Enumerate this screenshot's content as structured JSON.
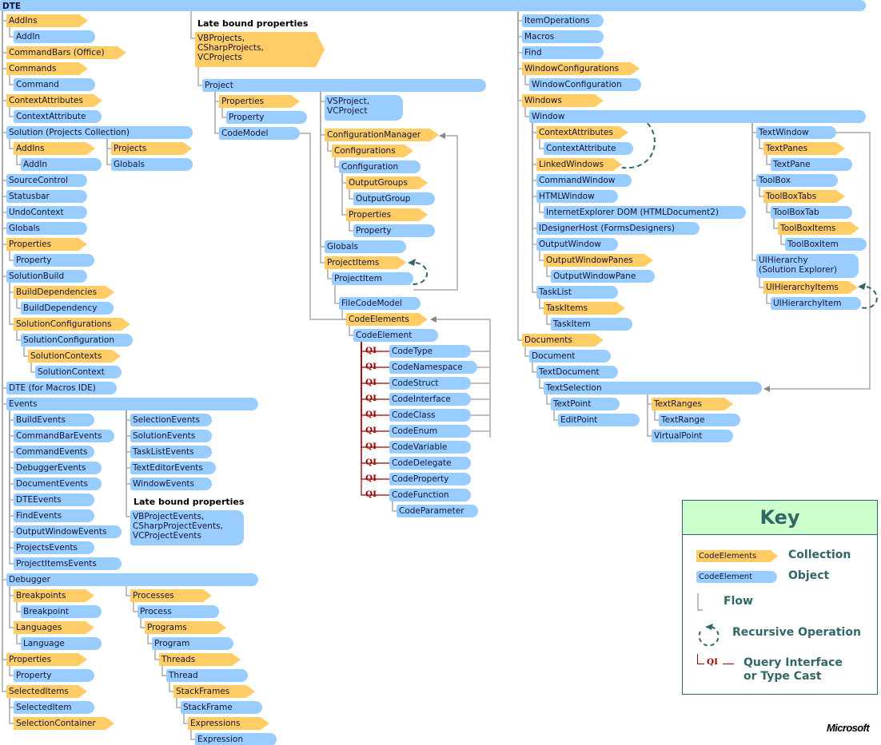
{
  "colors": {
    "collection": "#ffcc66",
    "object": "#99ccff",
    "flow": "#aaaaaa",
    "recursive": "#336666",
    "query_interface": "#990000",
    "key_header": "#ccffcc"
  },
  "late_bound_heading_top": "Late bound properties",
  "late_bound_heading_events": "Late bound properties",
  "qi_label": "QI",
  "nodes": [
    {
      "label": "DTE",
      "kind": "object"
    },
    {
      "label": "AddIns",
      "kind": "collection"
    },
    {
      "label": "AddIn",
      "kind": "object"
    },
    {
      "label": "CommandBars (Office)",
      "kind": "collection"
    },
    {
      "label": "Commands",
      "kind": "collection"
    },
    {
      "label": "Command",
      "kind": "object"
    },
    {
      "label": "ContextAttributes",
      "kind": "collection"
    },
    {
      "label": "ContextAttribute",
      "kind": "object"
    },
    {
      "label": "Solution (Projects Collection)",
      "kind": "object"
    },
    {
      "label": "AddIns",
      "kind": "collection"
    },
    {
      "label": "AddIn",
      "kind": "object"
    },
    {
      "label": "Projects",
      "kind": "collection"
    },
    {
      "label": "Globals",
      "kind": "object"
    },
    {
      "label": "SourceControl",
      "kind": "object"
    },
    {
      "label": "Statusbar",
      "kind": "object"
    },
    {
      "label": "UndoContext",
      "kind": "object"
    },
    {
      "label": "Globals",
      "kind": "object"
    },
    {
      "label": "Properties",
      "kind": "collection"
    },
    {
      "label": "Property",
      "kind": "object"
    },
    {
      "label": "SolutionBuild",
      "kind": "object"
    },
    {
      "label": "BuildDependencies",
      "kind": "collection"
    },
    {
      "label": "BuildDependency",
      "kind": "object"
    },
    {
      "label": "SolutionConfigurations",
      "kind": "collection"
    },
    {
      "label": "SolutionConfiguration",
      "kind": "object"
    },
    {
      "label": "SolutionContexts",
      "kind": "collection"
    },
    {
      "label": "SolutionContext",
      "kind": "object"
    },
    {
      "label": "DTE (for Macros IDE)",
      "kind": "object"
    },
    {
      "label": "Events",
      "kind": "object"
    },
    {
      "label": "BuildEvents",
      "kind": "object"
    },
    {
      "label": "CommandBarEvents",
      "kind": "object"
    },
    {
      "label": "CommandEvents",
      "kind": "object"
    },
    {
      "label": "DebuggerEvents",
      "kind": "object"
    },
    {
      "label": "DocumentEvents",
      "kind": "object"
    },
    {
      "label": "DTEEvents",
      "kind": "object"
    },
    {
      "label": "FindEvents",
      "kind": "object"
    },
    {
      "label": "OutputWindowEvents",
      "kind": "object"
    },
    {
      "label": "ProjectsEvents",
      "kind": "object"
    },
    {
      "label": "ProjectItemsEvents",
      "kind": "object"
    },
    {
      "label": "SelectionEvents",
      "kind": "object"
    },
    {
      "label": "SolutionEvents",
      "kind": "object"
    },
    {
      "label": "TaskListEvents",
      "kind": "object"
    },
    {
      "label": "TextEditorEvents",
      "kind": "object"
    },
    {
      "label": "WindowEvents",
      "kind": "object"
    },
    {
      "label": "VBProjectEvents,\nCSharpProjectEvents,\nVCProjectEvents",
      "kind": "object"
    },
    {
      "label": "Debugger",
      "kind": "object"
    },
    {
      "label": "Breakpoints",
      "kind": "collection"
    },
    {
      "label": "Breakpoint",
      "kind": "object"
    },
    {
      "label": "Languages",
      "kind": "collection"
    },
    {
      "label": "Language",
      "kind": "object"
    },
    {
      "label": "Properties",
      "kind": "collection"
    },
    {
      "label": "Property",
      "kind": "object"
    },
    {
      "label": "SelectedItems",
      "kind": "collection"
    },
    {
      "label": "SelectedItem",
      "kind": "object"
    },
    {
      "label": "SelectionContainer",
      "kind": "collection"
    },
    {
      "label": "Processes",
      "kind": "collection"
    },
    {
      "label": "Process",
      "kind": "object"
    },
    {
      "label": "Programs",
      "kind": "collection"
    },
    {
      "label": "Program",
      "kind": "object"
    },
    {
      "label": "Threads",
      "kind": "collection"
    },
    {
      "label": "Thread",
      "kind": "object"
    },
    {
      "label": "StackFrames",
      "kind": "collection"
    },
    {
      "label": "StackFrame",
      "kind": "object"
    },
    {
      "label": "Expressions",
      "kind": "collection"
    },
    {
      "label": "Expression",
      "kind": "object"
    },
    {
      "label": "VBProjects,\nCSharpProjects,\nVCProjects",
      "kind": "collection"
    },
    {
      "label": "Project",
      "kind": "object"
    },
    {
      "label": "Properties",
      "kind": "collection"
    },
    {
      "label": "Property",
      "kind": "object"
    },
    {
      "label": "CodeModel",
      "kind": "object"
    },
    {
      "label": "VSProject,\nVCProject",
      "kind": "object"
    },
    {
      "label": "ConfigurationManager",
      "kind": "collection"
    },
    {
      "label": "Configurations",
      "kind": "collection"
    },
    {
      "label": "Configuration",
      "kind": "object"
    },
    {
      "label": "OutputGroups",
      "kind": "collection"
    },
    {
      "label": "OutputGroup",
      "kind": "object"
    },
    {
      "label": "Properties",
      "kind": "collection"
    },
    {
      "label": "Property",
      "kind": "object"
    },
    {
      "label": "Globals",
      "kind": "object"
    },
    {
      "label": "ProjectItems",
      "kind": "collection"
    },
    {
      "label": "ProjectItem",
      "kind": "object"
    },
    {
      "label": "FileCodeModel",
      "kind": "object"
    },
    {
      "label": "CodeElements",
      "kind": "collection"
    },
    {
      "label": "CodeElement",
      "kind": "object"
    },
    {
      "label": "CodeType",
      "kind": "object"
    },
    {
      "label": "CodeNamespace",
      "kind": "object"
    },
    {
      "label": "CodeStruct",
      "kind": "object"
    },
    {
      "label": "CodeInterface",
      "kind": "object"
    },
    {
      "label": "CodeClass",
      "kind": "object"
    },
    {
      "label": "CodeEnum",
      "kind": "object"
    },
    {
      "label": "CodeVariable",
      "kind": "object"
    },
    {
      "label": "CodeDelegate",
      "kind": "object"
    },
    {
      "label": "CodeProperty",
      "kind": "object"
    },
    {
      "label": "CodeFunction",
      "kind": "object"
    },
    {
      "label": "CodeParameter",
      "kind": "object"
    },
    {
      "label": "ItemOperations",
      "kind": "object"
    },
    {
      "label": "Macros",
      "kind": "object"
    },
    {
      "label": "Find",
      "kind": "object"
    },
    {
      "label": "WindowConfigurations",
      "kind": "collection"
    },
    {
      "label": "WindowConfiguration",
      "kind": "object"
    },
    {
      "label": "Windows",
      "kind": "collection"
    },
    {
      "label": "Window",
      "kind": "object"
    },
    {
      "label": "ContextAttributes",
      "kind": "collection"
    },
    {
      "label": "ContextAttribute",
      "kind": "object"
    },
    {
      "label": "LinkedWindows",
      "kind": "collection"
    },
    {
      "label": "CommandWindow",
      "kind": "object"
    },
    {
      "label": "HTMLWindow",
      "kind": "object"
    },
    {
      "label": "InternetExplorer DOM (HTMLDocument2)",
      "kind": "object"
    },
    {
      "label": "IDesignerHost (FormsDesigners)",
      "kind": "object"
    },
    {
      "label": "OutputWindow",
      "kind": "object"
    },
    {
      "label": "OutputWindowPanes",
      "kind": "collection"
    },
    {
      "label": "OutputWindowPane",
      "kind": "object"
    },
    {
      "label": "TaskList",
      "kind": "object"
    },
    {
      "label": "TaskItems",
      "kind": "collection"
    },
    {
      "label": "TaskItem",
      "kind": "object"
    },
    {
      "label": "Documents",
      "kind": "collection"
    },
    {
      "label": "Document",
      "kind": "object"
    },
    {
      "label": "TextDocument",
      "kind": "object"
    },
    {
      "label": "TextSelection",
      "kind": "object"
    },
    {
      "label": "TextPoint",
      "kind": "object"
    },
    {
      "label": "EditPoint",
      "kind": "object"
    },
    {
      "label": "TextRanges",
      "kind": "collection"
    },
    {
      "label": "TextRange",
      "kind": "object"
    },
    {
      "label": "VirtualPoint",
      "kind": "object"
    },
    {
      "label": "TextWindow",
      "kind": "object"
    },
    {
      "label": "TextPanes",
      "kind": "collection"
    },
    {
      "label": "TextPane",
      "kind": "object"
    },
    {
      "label": "ToolBox",
      "kind": "object"
    },
    {
      "label": "ToolBoxTabs",
      "kind": "collection"
    },
    {
      "label": "ToolBoxTab",
      "kind": "object"
    },
    {
      "label": "ToolBoxItems",
      "kind": "collection"
    },
    {
      "label": "ToolBoxItem",
      "kind": "object"
    },
    {
      "label": "UIHierarchy\n(Solution Explorer)",
      "kind": "object"
    },
    {
      "label": "UIHierarchyItems",
      "kind": "collection"
    },
    {
      "label": "UIHierarchyItem",
      "kind": "object"
    }
  ],
  "key": {
    "title": "Key",
    "collection_sample": "CodeElements",
    "collection_label": "Collection",
    "object_sample": "CodeElement",
    "object_label": "Object",
    "flow_label": "Flow",
    "recursive_label": "Recursive Operation",
    "qi_sample": "QI",
    "qi_label_line1": "Query Interface",
    "qi_label_line2": "or Type Cast"
  },
  "logo": "Microsoft"
}
